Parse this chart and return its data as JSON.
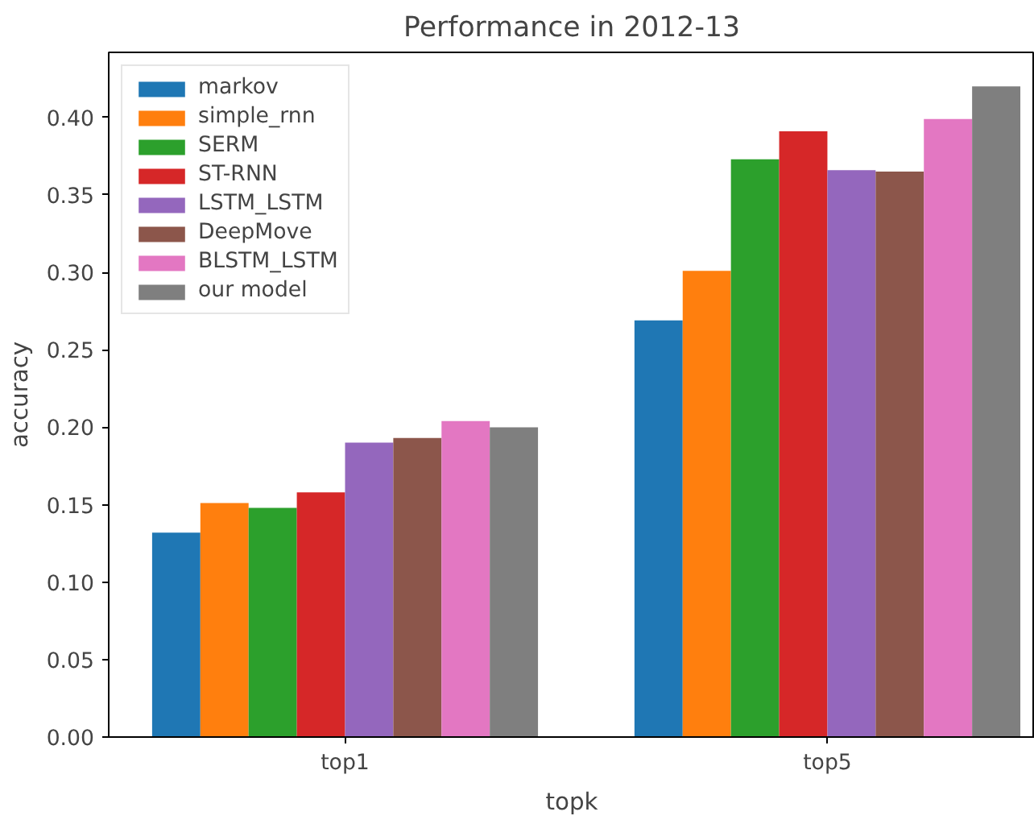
{
  "chart_data": {
    "type": "bar",
    "title": "Performance in 2012-13",
    "xlabel": "topk",
    "ylabel": "accuracy",
    "categories": [
      "top1",
      "top5"
    ],
    "series": [
      {
        "name": "markov",
        "color": "#1f77b4",
        "values": [
          0.132,
          0.269
        ]
      },
      {
        "name": "simple_rnn",
        "color": "#ff7f0e",
        "values": [
          0.151,
          0.301
        ]
      },
      {
        "name": "SERM",
        "color": "#2ca02c",
        "values": [
          0.148,
          0.373
        ]
      },
      {
        "name": "ST-RNN",
        "color": "#d62728",
        "values": [
          0.158,
          0.391
        ]
      },
      {
        "name": "LSTM_LSTM",
        "color": "#9467bd",
        "values": [
          0.19,
          0.366
        ]
      },
      {
        "name": "DeepMove",
        "color": "#8c564b",
        "values": [
          0.193,
          0.365
        ]
      },
      {
        "name": "BLSTM_LSTM",
        "color": "#e377c2",
        "values": [
          0.204,
          0.399
        ]
      },
      {
        "name": "our model",
        "color": "#7f7f7f",
        "values": [
          0.2,
          0.42
        ]
      }
    ],
    "ylim": [
      0,
      0.442
    ],
    "yticks": [
      {
        "value": 0,
        "label": "0.00"
      },
      {
        "value": 0.05,
        "label": "0.05"
      },
      {
        "value": 0.1,
        "label": "0.10"
      },
      {
        "value": 0.15,
        "label": "0.15"
      },
      {
        "value": 0.2,
        "label": "0.20"
      },
      {
        "value": 0.25,
        "label": "0.25"
      },
      {
        "value": 0.3,
        "label": "0.30"
      },
      {
        "value": 0.35,
        "label": "0.35"
      },
      {
        "value": 0.4,
        "label": "0.40"
      }
    ],
    "grid": false,
    "legend": "top left"
  }
}
